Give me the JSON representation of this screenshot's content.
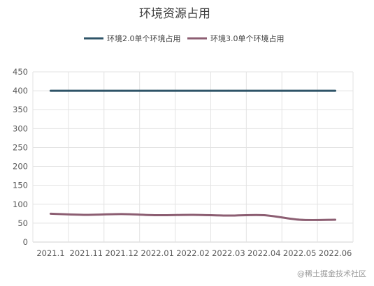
{
  "chart_data": {
    "type": "line",
    "title": "环境资源占用",
    "categories": [
      "2021.1",
      "2021.11",
      "2021.12",
      "2022.01",
      "2022.02",
      "2022.03",
      "2022.04",
      "2022.05",
      "2022.06"
    ],
    "series": [
      {
        "name": "环境2.0单个环境占用",
        "color": "#2f5468",
        "values": [
          400,
          400,
          400,
          400,
          400,
          400,
          400,
          400,
          400
        ]
      },
      {
        "name": "环境3.0单个环境占用",
        "color": "#8c5e72",
        "values": [
          75,
          72,
          74,
          71,
          72,
          70,
          71,
          59,
          59
        ]
      }
    ],
    "ylim": [
      0,
      450
    ],
    "yticks": [
      0,
      50,
      100,
      150,
      200,
      250,
      300,
      350,
      400,
      450
    ],
    "grid": true,
    "smooth": true,
    "legend_position": "top-center"
  },
  "watermark": "@稀土掘金技术社区"
}
